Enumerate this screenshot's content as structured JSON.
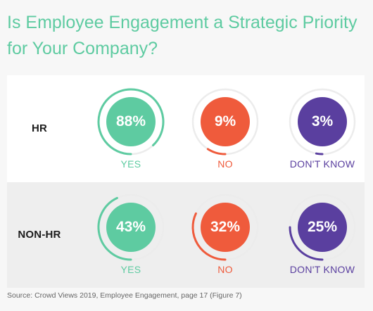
{
  "title": "Is Employee Engagement a Strategic Priority for Your Company?",
  "source": "Source: Crowd Views 2019, Employee Engagement, page 17 (Figure 7)",
  "colors": {
    "yes": "#5ecba1",
    "no": "#ef5b3c",
    "dont_know": "#5a3f9f",
    "track": "#ececec",
    "title": "#5ecba1"
  },
  "chart_data": {
    "type": "pie",
    "categories": [
      "YES",
      "NO",
      "DON'T KNOW"
    ],
    "series": [
      {
        "name": "HR",
        "values": [
          88,
          9,
          3
        ],
        "labels": [
          "88%",
          "9%",
          "3%"
        ]
      },
      {
        "name": "NON-HR",
        "values": [
          43,
          32,
          25
        ],
        "labels": [
          "43%",
          "32%",
          "25%"
        ]
      }
    ],
    "title": "Is Employee Engagement a Strategic Priority for Your Company?"
  }
}
